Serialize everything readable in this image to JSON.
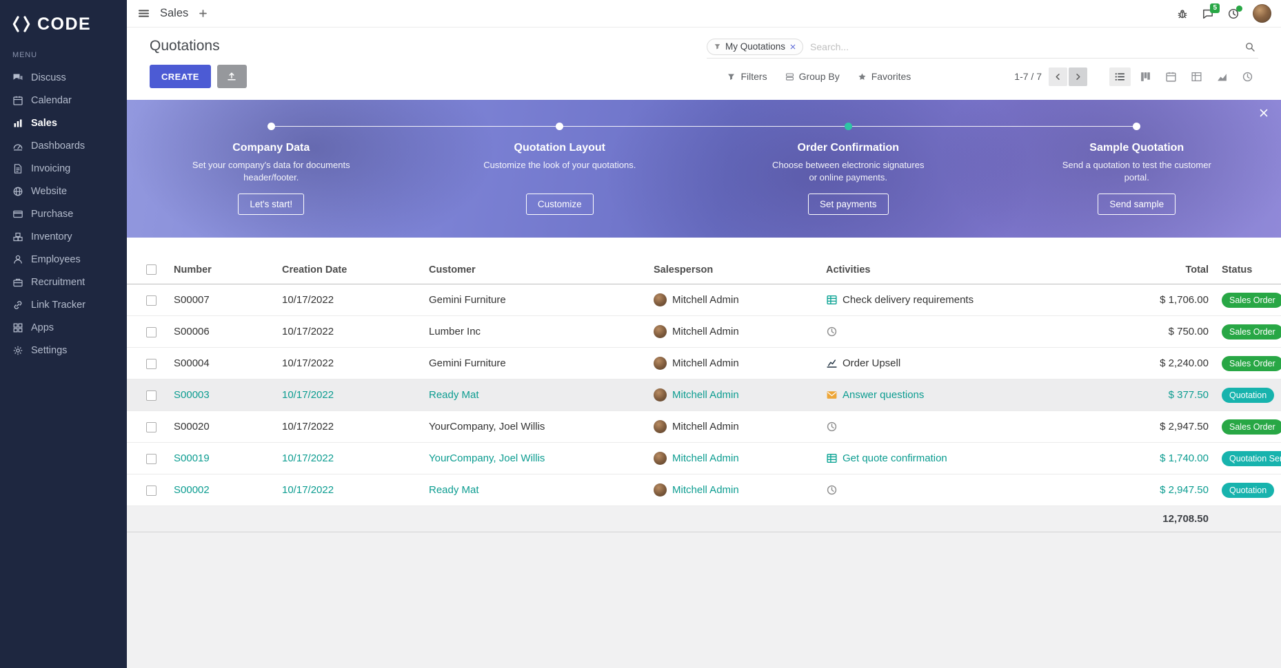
{
  "colors": {
    "sidebar_bg": "#1e2740",
    "accent": "#4c5bd4",
    "teal": "#0b9c90",
    "badge_green": "#28a745",
    "badge_teal": "#17b3ad",
    "dot_teal": "#2ec5a5",
    "banner_overlay": "#7478cf"
  },
  "brand": {
    "name": "CODE"
  },
  "topbar": {
    "app_name": "Sales",
    "icons": [
      {
        "name": "bug-icon"
      },
      {
        "name": "chat-icon",
        "badge": "5"
      },
      {
        "name": "activity-clock-icon",
        "badge_dot": true
      }
    ]
  },
  "sidebar": {
    "menu_label": "MENU",
    "items": [
      {
        "label": "Discuss",
        "icon": "discuss-icon",
        "active": false
      },
      {
        "label": "Calendar",
        "icon": "calendar-icon",
        "active": false
      },
      {
        "label": "Sales",
        "icon": "sales-icon",
        "active": true
      },
      {
        "label": "Dashboards",
        "icon": "dashboards-icon",
        "active": false
      },
      {
        "label": "Invoicing",
        "icon": "invoicing-icon",
        "active": false
      },
      {
        "label": "Website",
        "icon": "website-icon",
        "active": false
      },
      {
        "label": "Purchase",
        "icon": "purchase-icon",
        "active": false
      },
      {
        "label": "Inventory",
        "icon": "inventory-icon",
        "active": false
      },
      {
        "label": "Employees",
        "icon": "employees-icon",
        "active": false
      },
      {
        "label": "Recruitment",
        "icon": "recruitment-icon",
        "active": false
      },
      {
        "label": "Link Tracker",
        "icon": "link-icon",
        "active": false
      },
      {
        "label": "Apps",
        "icon": "apps-icon",
        "active": false
      },
      {
        "label": "Settings",
        "icon": "settings-icon",
        "active": false
      }
    ]
  },
  "control_panel": {
    "title": "Quotations",
    "create_label": "CREATE",
    "search": {
      "facet": "My Quotations",
      "placeholder": "Search..."
    },
    "filters_label": "Filters",
    "group_by_label": "Group By",
    "favorites_label": "Favorites",
    "pager": "1-7 / 7",
    "views": [
      {
        "name": "list",
        "icon": "list-icon",
        "active": true
      },
      {
        "name": "kanban",
        "icon": "kanban-icon",
        "active": false
      },
      {
        "name": "calendar",
        "icon": "calendar-view-icon",
        "active": false
      },
      {
        "name": "pivot",
        "icon": "pivot-icon",
        "active": false
      },
      {
        "name": "graph",
        "icon": "graph-icon",
        "active": false
      },
      {
        "name": "activity",
        "icon": "activity-icon",
        "active": false
      }
    ]
  },
  "banner": {
    "steps": [
      {
        "title": "Company Data",
        "description": "Set your company's data for documents header/footer.",
        "button": "Let's start!",
        "dot": "white"
      },
      {
        "title": "Quotation Layout",
        "description": "Customize the look of your quotations.",
        "button": "Customize",
        "dot": "white"
      },
      {
        "title": "Order Confirmation",
        "description": "Choose between electronic signatures or online payments.",
        "button": "Set payments",
        "dot": "teal"
      },
      {
        "title": "Sample Quotation",
        "description": "Send a quotation to test the customer portal.",
        "button": "Send sample",
        "dot": "white"
      }
    ]
  },
  "table": {
    "headers": {
      "number": "Number",
      "date": "Creation Date",
      "customer": "Customer",
      "salesperson": "Salesperson",
      "activities": "Activities",
      "total": "Total",
      "status": "Status"
    },
    "rows": [
      {
        "number": "S00007",
        "date": "10/17/2022",
        "customer": "Gemini Furniture",
        "salesperson": "Mitchell Admin",
        "activity": "Check delivery requirements",
        "activity_icon": "spreadsheet-icon",
        "total": "$ 1,706.00",
        "status": "Sales Order",
        "status_type": "green",
        "teal": false,
        "selected": false
      },
      {
        "number": "S00006",
        "date": "10/17/2022",
        "customer": "Lumber Inc",
        "salesperson": "Mitchell Admin",
        "activity": "",
        "activity_icon": "clock-plus-icon",
        "total": "$ 750.00",
        "status": "Sales Order",
        "status_type": "green",
        "teal": false,
        "selected": false
      },
      {
        "number": "S00004",
        "date": "10/17/2022",
        "customer": "Gemini Furniture",
        "salesperson": "Mitchell Admin",
        "activity": "Order Upsell",
        "activity_icon": "chart-icon",
        "total": "$ 2,240.00",
        "status": "Sales Order",
        "status_type": "green",
        "teal": false,
        "selected": false
      },
      {
        "number": "S00003",
        "date": "10/17/2022",
        "customer": "Ready Mat",
        "salesperson": "Mitchell Admin",
        "activity": "Answer questions",
        "activity_icon": "envelope-icon",
        "total": "$ 377.50",
        "status": "Quotation",
        "status_type": "teal",
        "teal": true,
        "selected": true
      },
      {
        "number": "S00020",
        "date": "10/17/2022",
        "customer": "YourCompany, Joel Willis",
        "salesperson": "Mitchell Admin",
        "activity": "",
        "activity_icon": "clock-plus-icon",
        "total": "$ 2,947.50",
        "status": "Sales Order",
        "status_type": "green",
        "teal": false,
        "selected": false
      },
      {
        "number": "S00019",
        "date": "10/17/2022",
        "customer": "YourCompany, Joel Willis",
        "salesperson": "Mitchell Admin",
        "activity": "Get quote confirmation",
        "activity_icon": "spreadsheet-icon",
        "total": "$ 1,740.00",
        "status": "Quotation Sent",
        "status_type": "teal",
        "teal": true,
        "selected": false
      },
      {
        "number": "S00002",
        "date": "10/17/2022",
        "customer": "Ready Mat",
        "salesperson": "Mitchell Admin",
        "activity": "",
        "activity_icon": "clock-plus-icon",
        "total": "$ 2,947.50",
        "status": "Quotation",
        "status_type": "teal",
        "teal": true,
        "selected": false
      }
    ],
    "footer_total": "12,708.50"
  }
}
